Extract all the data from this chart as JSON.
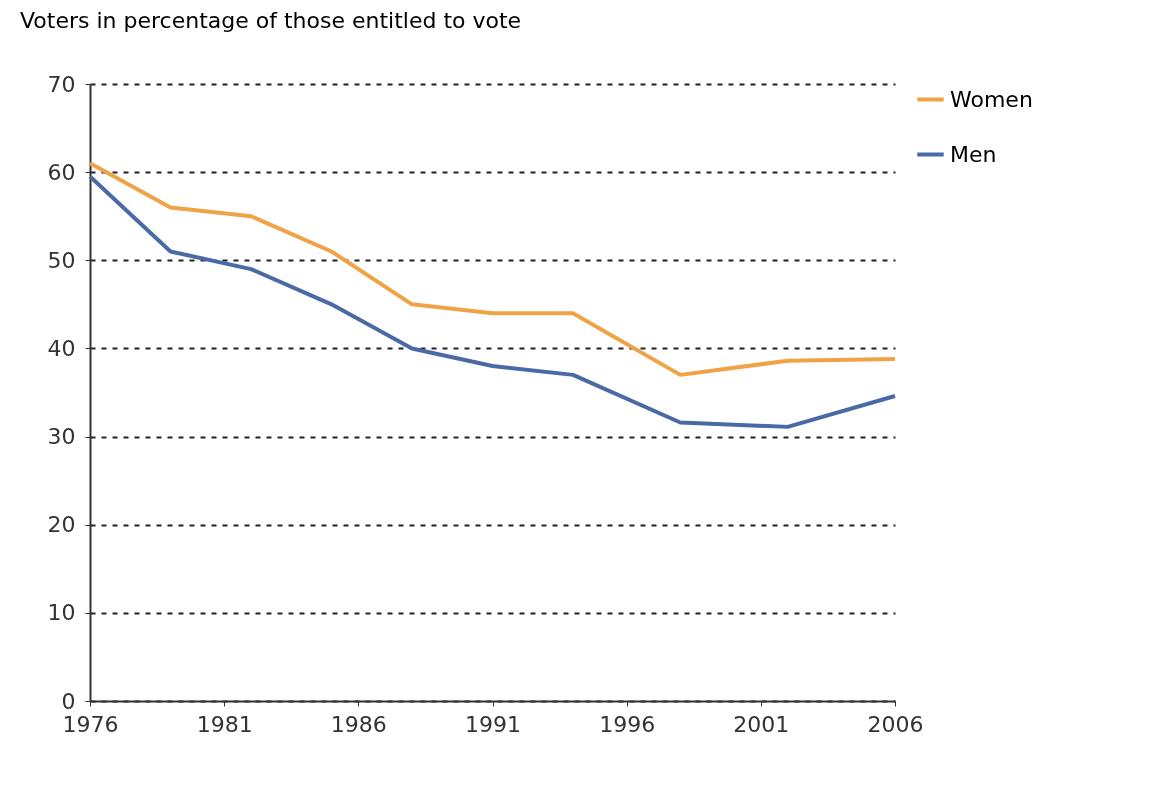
{
  "chart_data": {
    "type": "line",
    "title": "Voters in percentage of those entitled to vote",
    "x": [
      1976,
      1979,
      1982,
      1985,
      1988,
      1991,
      1994,
      1998,
      2002,
      2006
    ],
    "series": [
      {
        "name": "Women",
        "color": "#f0a346",
        "values": [
          61,
          56,
          55,
          51,
          45,
          44,
          44,
          37,
          38.6,
          38.8
        ]
      },
      {
        "name": "Men",
        "color": "#4a6aa5",
        "values": [
          59.5,
          51,
          49,
          45,
          40,
          38,
          37,
          31.6,
          31.1,
          34.6
        ]
      }
    ],
    "xlim": [
      1976,
      2006
    ],
    "xticks": [
      1976,
      1981,
      1986,
      1991,
      1996,
      2001,
      2006
    ],
    "ylim": [
      0,
      70
    ],
    "yticks": [
      0,
      10,
      20,
      30,
      40,
      50,
      60,
      70
    ],
    "grid": "y",
    "legend": "right",
    "marker": "none",
    "line_style": "solid"
  }
}
